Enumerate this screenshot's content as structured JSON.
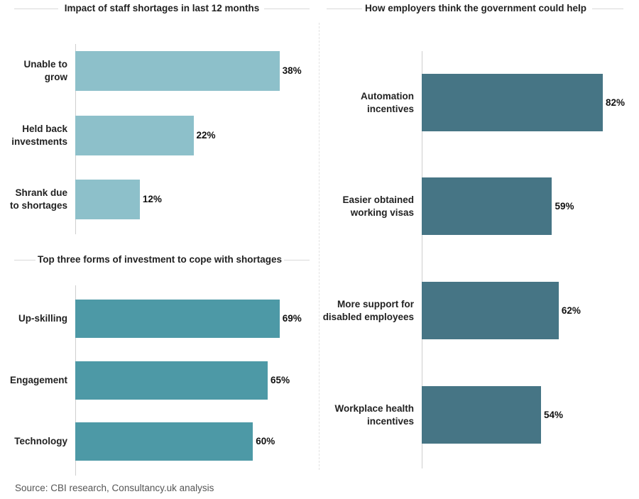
{
  "colors": {
    "impact": "#8dc0ca",
    "investment": "#4d99a6",
    "government": "#467585"
  },
  "chart_data": [
    {
      "type": "bar",
      "orientation": "horizontal",
      "title": "Impact of staff shortages in last 12 months",
      "categories": [
        "Unable to\ngrow",
        "Held back\ninvestments",
        "Shrank due\nto shortages"
      ],
      "values": [
        38,
        22,
        12
      ],
      "value_labels": [
        "38%",
        "22%",
        "12%"
      ],
      "unit": "%",
      "xlim": [
        0,
        100
      ]
    },
    {
      "type": "bar",
      "orientation": "horizontal",
      "title": "Top three forms of investment to cope with shortages",
      "categories": [
        "Up-skilling",
        "Engagement",
        "Technology"
      ],
      "values": [
        69,
        65,
        60
      ],
      "value_labels": [
        "69%",
        "65%",
        "60%"
      ],
      "unit": "%",
      "xlim": [
        0,
        100
      ]
    },
    {
      "type": "bar",
      "orientation": "horizontal",
      "title": "How employers think the government could help",
      "categories": [
        "Automation\nincentives",
        "Easier obtained\nworking visas",
        "More support for\ndisabled employees",
        "Workplace health\nincentives"
      ],
      "values": [
        82,
        59,
        62,
        54
      ],
      "value_labels": [
        "82%",
        "59%",
        "62%",
        "54%"
      ],
      "unit": "%",
      "xlim": [
        0,
        100
      ]
    }
  ],
  "source": "Source: CBI research, Consultancy.uk analysis"
}
